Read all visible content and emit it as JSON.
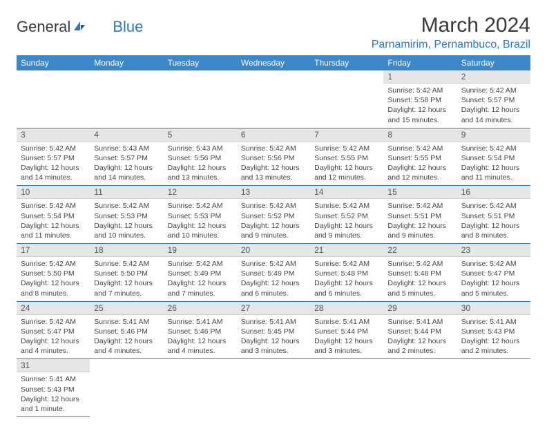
{
  "logo": {
    "text1": "General",
    "text2": "Blue"
  },
  "title": "March 2024",
  "location": "Parnamirim, Pernambuco, Brazil",
  "colors": {
    "header_bg": "#3b87c8",
    "header_fg": "#ffffff",
    "border": "#2b7ac1",
    "daynum_bg": "#e6e6e6",
    "text": "#444444",
    "logo_blue": "#2b7ac1"
  },
  "days_of_week": [
    "Sunday",
    "Monday",
    "Tuesday",
    "Wednesday",
    "Thursday",
    "Friday",
    "Saturday"
  ],
  "weeks": [
    [
      null,
      null,
      null,
      null,
      null,
      {
        "n": "1",
        "sunrise": "Sunrise: 5:42 AM",
        "sunset": "Sunset: 5:58 PM",
        "daylight": "Daylight: 12 hours and 15 minutes."
      },
      {
        "n": "2",
        "sunrise": "Sunrise: 5:42 AM",
        "sunset": "Sunset: 5:57 PM",
        "daylight": "Daylight: 12 hours and 14 minutes."
      }
    ],
    [
      {
        "n": "3",
        "sunrise": "Sunrise: 5:42 AM",
        "sunset": "Sunset: 5:57 PM",
        "daylight": "Daylight: 12 hours and 14 minutes."
      },
      {
        "n": "4",
        "sunrise": "Sunrise: 5:43 AM",
        "sunset": "Sunset: 5:57 PM",
        "daylight": "Daylight: 12 hours and 14 minutes."
      },
      {
        "n": "5",
        "sunrise": "Sunrise: 5:43 AM",
        "sunset": "Sunset: 5:56 PM",
        "daylight": "Daylight: 12 hours and 13 minutes."
      },
      {
        "n": "6",
        "sunrise": "Sunrise: 5:42 AM",
        "sunset": "Sunset: 5:56 PM",
        "daylight": "Daylight: 12 hours and 13 minutes."
      },
      {
        "n": "7",
        "sunrise": "Sunrise: 5:42 AM",
        "sunset": "Sunset: 5:55 PM",
        "daylight": "Daylight: 12 hours and 12 minutes."
      },
      {
        "n": "8",
        "sunrise": "Sunrise: 5:42 AM",
        "sunset": "Sunset: 5:55 PM",
        "daylight": "Daylight: 12 hours and 12 minutes."
      },
      {
        "n": "9",
        "sunrise": "Sunrise: 5:42 AM",
        "sunset": "Sunset: 5:54 PM",
        "daylight": "Daylight: 12 hours and 11 minutes."
      }
    ],
    [
      {
        "n": "10",
        "sunrise": "Sunrise: 5:42 AM",
        "sunset": "Sunset: 5:54 PM",
        "daylight": "Daylight: 12 hours and 11 minutes."
      },
      {
        "n": "11",
        "sunrise": "Sunrise: 5:42 AM",
        "sunset": "Sunset: 5:53 PM",
        "daylight": "Daylight: 12 hours and 10 minutes."
      },
      {
        "n": "12",
        "sunrise": "Sunrise: 5:42 AM",
        "sunset": "Sunset: 5:53 PM",
        "daylight": "Daylight: 12 hours and 10 minutes."
      },
      {
        "n": "13",
        "sunrise": "Sunrise: 5:42 AM",
        "sunset": "Sunset: 5:52 PM",
        "daylight": "Daylight: 12 hours and 9 minutes."
      },
      {
        "n": "14",
        "sunrise": "Sunrise: 5:42 AM",
        "sunset": "Sunset: 5:52 PM",
        "daylight": "Daylight: 12 hours and 9 minutes."
      },
      {
        "n": "15",
        "sunrise": "Sunrise: 5:42 AM",
        "sunset": "Sunset: 5:51 PM",
        "daylight": "Daylight: 12 hours and 9 minutes."
      },
      {
        "n": "16",
        "sunrise": "Sunrise: 5:42 AM",
        "sunset": "Sunset: 5:51 PM",
        "daylight": "Daylight: 12 hours and 8 minutes."
      }
    ],
    [
      {
        "n": "17",
        "sunrise": "Sunrise: 5:42 AM",
        "sunset": "Sunset: 5:50 PM",
        "daylight": "Daylight: 12 hours and 8 minutes."
      },
      {
        "n": "18",
        "sunrise": "Sunrise: 5:42 AM",
        "sunset": "Sunset: 5:50 PM",
        "daylight": "Daylight: 12 hours and 7 minutes."
      },
      {
        "n": "19",
        "sunrise": "Sunrise: 5:42 AM",
        "sunset": "Sunset: 5:49 PM",
        "daylight": "Daylight: 12 hours and 7 minutes."
      },
      {
        "n": "20",
        "sunrise": "Sunrise: 5:42 AM",
        "sunset": "Sunset: 5:49 PM",
        "daylight": "Daylight: 12 hours and 6 minutes."
      },
      {
        "n": "21",
        "sunrise": "Sunrise: 5:42 AM",
        "sunset": "Sunset: 5:48 PM",
        "daylight": "Daylight: 12 hours and 6 minutes."
      },
      {
        "n": "22",
        "sunrise": "Sunrise: 5:42 AM",
        "sunset": "Sunset: 5:48 PM",
        "daylight": "Daylight: 12 hours and 5 minutes."
      },
      {
        "n": "23",
        "sunrise": "Sunrise: 5:42 AM",
        "sunset": "Sunset: 5:47 PM",
        "daylight": "Daylight: 12 hours and 5 minutes."
      }
    ],
    [
      {
        "n": "24",
        "sunrise": "Sunrise: 5:42 AM",
        "sunset": "Sunset: 5:47 PM",
        "daylight": "Daylight: 12 hours and 4 minutes."
      },
      {
        "n": "25",
        "sunrise": "Sunrise: 5:41 AM",
        "sunset": "Sunset: 5:46 PM",
        "daylight": "Daylight: 12 hours and 4 minutes."
      },
      {
        "n": "26",
        "sunrise": "Sunrise: 5:41 AM",
        "sunset": "Sunset: 5:46 PM",
        "daylight": "Daylight: 12 hours and 4 minutes."
      },
      {
        "n": "27",
        "sunrise": "Sunrise: 5:41 AM",
        "sunset": "Sunset: 5:45 PM",
        "daylight": "Daylight: 12 hours and 3 minutes."
      },
      {
        "n": "28",
        "sunrise": "Sunrise: 5:41 AM",
        "sunset": "Sunset: 5:44 PM",
        "daylight": "Daylight: 12 hours and 3 minutes."
      },
      {
        "n": "29",
        "sunrise": "Sunrise: 5:41 AM",
        "sunset": "Sunset: 5:44 PM",
        "daylight": "Daylight: 12 hours and 2 minutes."
      },
      {
        "n": "30",
        "sunrise": "Sunrise: 5:41 AM",
        "sunset": "Sunset: 5:43 PM",
        "daylight": "Daylight: 12 hours and 2 minutes."
      }
    ],
    [
      {
        "n": "31",
        "sunrise": "Sunrise: 5:41 AM",
        "sunset": "Sunset: 5:43 PM",
        "daylight": "Daylight: 12 hours and 1 minute."
      },
      null,
      null,
      null,
      null,
      null,
      null
    ]
  ]
}
